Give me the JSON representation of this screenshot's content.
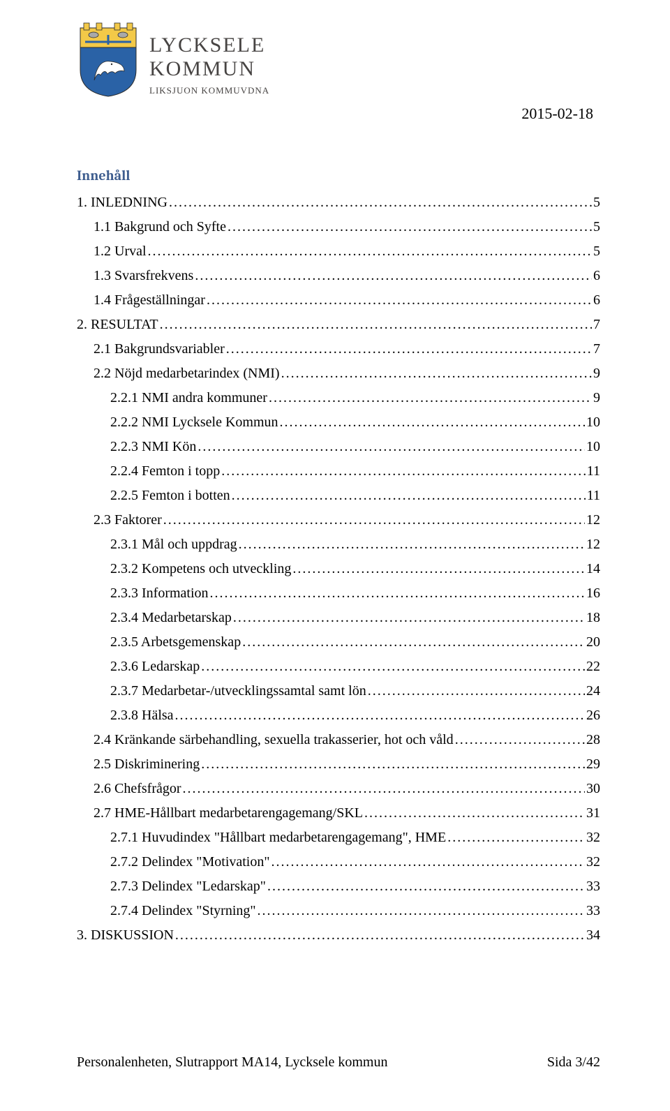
{
  "header": {
    "org_name": "LYCKSELE",
    "org_sub": "KOMMUN",
    "org_tag": "LIKSJUON KOMMUVDNA",
    "date": "2015-02-18"
  },
  "toc_title": "Innehåll",
  "toc": [
    {
      "level": 1,
      "label": "1. INLEDNING",
      "page": "5"
    },
    {
      "level": 2,
      "label": "1.1 Bakgrund och Syfte",
      "page": "5"
    },
    {
      "level": 2,
      "label": "1.2 Urval",
      "page": "5"
    },
    {
      "level": 2,
      "label": "1.3 Svarsfrekvens",
      "page": "6"
    },
    {
      "level": 2,
      "label": "1.4 Frågeställningar",
      "page": "6"
    },
    {
      "level": 1,
      "label": "2. RESULTAT",
      "page": "7"
    },
    {
      "level": 2,
      "label": "2.1 Bakgrundsvariabler",
      "page": "7"
    },
    {
      "level": 2,
      "label": "2.2 Nöjd medarbetarindex (NMI)",
      "page": "9"
    },
    {
      "level": 3,
      "label": "2.2.1 NMI andra kommuner",
      "page": "9"
    },
    {
      "level": 3,
      "label": "2.2.2 NMI Lycksele Kommun",
      "page": "10"
    },
    {
      "level": 3,
      "label": "2.2.3 NMI Kön",
      "page": "10"
    },
    {
      "level": 3,
      "label": "2.2.4 Femton i topp",
      "page": "11"
    },
    {
      "level": 3,
      "label": "2.2.5 Femton i botten",
      "page": "11"
    },
    {
      "level": 2,
      "label": "2.3 Faktorer",
      "page": "12"
    },
    {
      "level": 3,
      "label": "2.3.1 Mål och uppdrag",
      "page": "12"
    },
    {
      "level": 3,
      "label": "2.3.2 Kompetens och utveckling",
      "page": "14"
    },
    {
      "level": 3,
      "label": "2.3.3 Information",
      "page": "16"
    },
    {
      "level": 3,
      "label": "2.3.4 Medarbetarskap",
      "page": "18"
    },
    {
      "level": 3,
      "label": "2.3.5 Arbetsgemenskap",
      "page": "20"
    },
    {
      "level": 3,
      "label": "2.3.6 Ledarskap",
      "page": "22"
    },
    {
      "level": 3,
      "label": "2.3.7 Medarbetar-/utvecklingssamtal samt lön",
      "page": "24"
    },
    {
      "level": 3,
      "label": "2.3.8 Hälsa",
      "page": "26"
    },
    {
      "level": 2,
      "label": "2.4 Kränkande särbehandling, sexuella trakasserier, hot och våld",
      "page": "28"
    },
    {
      "level": 2,
      "label": "2.5 Diskriminering",
      "page": "29"
    },
    {
      "level": 2,
      "label": "2.6 Chefsfrågor",
      "page": "30"
    },
    {
      "level": 2,
      "label": "2.7 HME-Hållbart medarbetarengagemang/SKL",
      "page": "31"
    },
    {
      "level": 3,
      "label": "2.7.1 Huvudindex \"Hållbart medarbetarengagemang\", HME",
      "page": "32"
    },
    {
      "level": 3,
      "label": "2.7.2 Delindex \"Motivation\"",
      "page": "32"
    },
    {
      "level": 3,
      "label": "2.7.3 Delindex \"Ledarskap\"",
      "page": "33"
    },
    {
      "level": 3,
      "label": "2.7.4 Delindex \"Styrning\"",
      "page": "33"
    },
    {
      "level": 1,
      "label": "3. DISKUSSION",
      "page": "34"
    }
  ],
  "footer": {
    "left": "Personalenheten, Slutrapport MA14, Lycksele kommun",
    "right": "Sida 3/42"
  },
  "crest_colors": {
    "yellow": "#f3c948",
    "blue": "#2a62a6",
    "white": "#ffffff",
    "gray": "#a9a9a9",
    "black": "#2b2b2b"
  }
}
